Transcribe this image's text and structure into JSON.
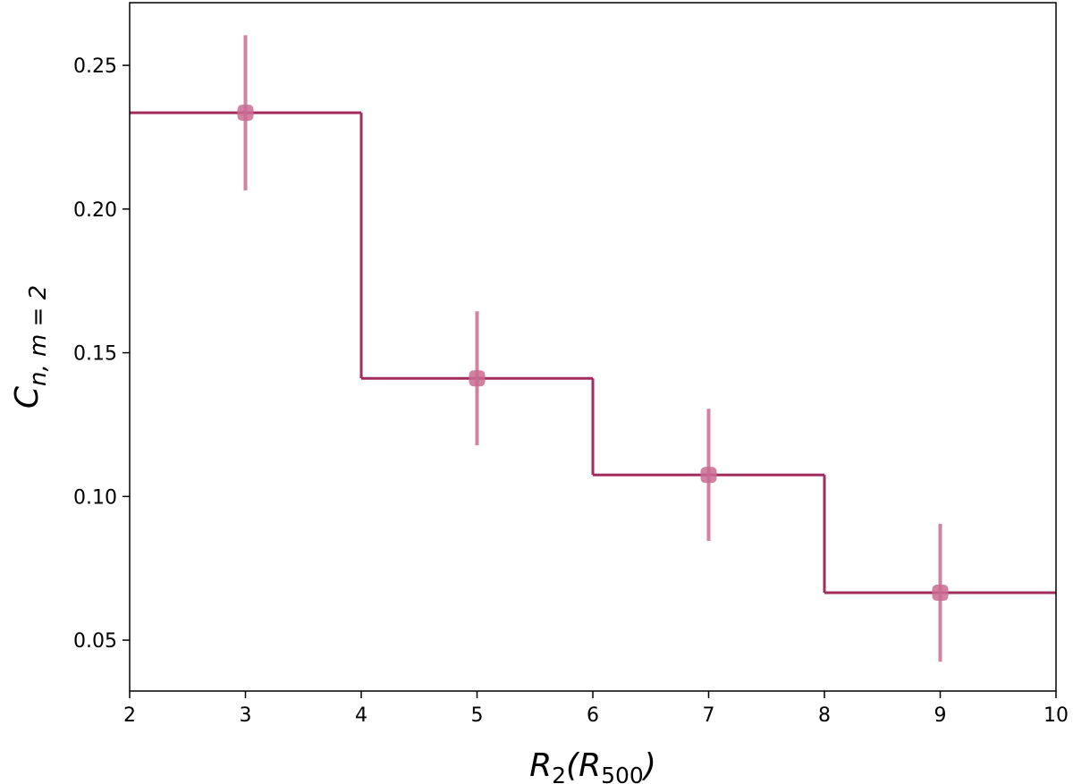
{
  "chart_data": {
    "type": "errorbar",
    "xlabel": [
      "R",
      "2",
      "(R",
      "500",
      ")"
    ],
    "ylabel": [
      "C",
      "n, m = 2"
    ],
    "x": [
      3,
      5,
      7,
      9
    ],
    "values": [
      0.2335,
      0.1411,
      0.1075,
      0.0665
    ],
    "errors": [
      0.027,
      0.0233,
      0.023,
      0.024
    ],
    "bins": [
      2,
      4,
      6,
      8,
      10
    ],
    "color": "#a22c5e",
    "marker_color": "#c96b92",
    "xlim": [
      2,
      10
    ],
    "ylim": [
      0.0323,
      0.2718
    ],
    "xticks": [
      2,
      3,
      4,
      5,
      6,
      7,
      8,
      9,
      10
    ],
    "yticks": [
      0.05,
      {
        "value": 0.1,
        "label": "0.10"
      },
      0.15,
      {
        "value": 0.2,
        "label": "0.20"
      },
      0.25
    ]
  }
}
